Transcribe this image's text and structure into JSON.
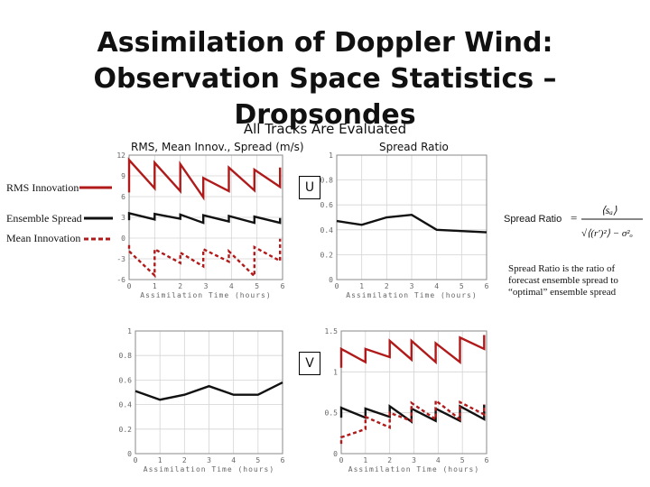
{
  "slide": {
    "title_line1": "Assimilation of Doppler Wind:",
    "title_line2": "Observation Space Statistics – Dropsondes",
    "subtitle": "All Tracks Are Evaluated",
    "left_heading": "RMS, Mean Innov., Spread (m/s)",
    "right_heading": "Spread Ratio",
    "u_label": "U",
    "v_label": "V",
    "formula_label": "Spread Ratio",
    "note": "Spread Ratio is the ratio of forecast ensemble spread to “optimal” ensemble spread"
  },
  "legend": [
    {
      "label": "RMS Innovation",
      "color": "#b01a1a",
      "style": "solid"
    },
    {
      "label": "Ensemble Spread",
      "color": "#111111",
      "style": "solid"
    },
    {
      "label": "Mean Innovation",
      "color": "#b01a1a",
      "style": "dashed"
    }
  ],
  "colors": {
    "rms": "#b01a1a",
    "spread": "#111111",
    "mean": "#b01a1a",
    "grid": "#d4d4d4",
    "frame": "#888888"
  },
  "chart_data": [
    {
      "id": "u-innovation",
      "type": "line",
      "title": "RMS, Mean Innov., Spread (m/s)",
      "xlabel": "Assimilation Time (hours)",
      "xlim": [
        0,
        6
      ],
      "ylim": [
        -6,
        12
      ],
      "xticks": [
        "0",
        "1",
        "2",
        "3",
        "4",
        "5",
        "6"
      ],
      "yticks": [
        "12",
        "9",
        "6",
        "3",
        "0",
        "-3",
        "-6"
      ],
      "grid": true,
      "series": [
        {
          "name": "RMS Innovation",
          "style": "solid",
          "color": "#b01a1a",
          "x": [
            0,
            0,
            1,
            1,
            2,
            2,
            2.9,
            2.9,
            3.9,
            3.9,
            4.9,
            4.9,
            5.9,
            5.9
          ],
          "y": [
            6.6,
            11.3,
            7.2,
            10.9,
            6.8,
            10.7,
            5.9,
            8.7,
            6.8,
            10.2,
            6.9,
            9.9,
            7.4,
            10.2
          ]
        },
        {
          "name": "Ensemble Spread",
          "style": "solid",
          "color": "#111111",
          "x": [
            0,
            0,
            1,
            1,
            2,
            2,
            2.9,
            2.9,
            3.9,
            3.9,
            4.9,
            4.9,
            5.9,
            5.9
          ],
          "y": [
            2.6,
            3.6,
            2.7,
            3.5,
            2.8,
            3.4,
            2.2,
            3.3,
            2.4,
            3.2,
            2.2,
            3.1,
            2.2,
            2.9
          ]
        },
        {
          "name": "Mean Innovation",
          "style": "dashed",
          "color": "#b01a1a",
          "x": [
            0,
            0,
            1,
            1,
            2,
            2,
            2.9,
            2.9,
            3.9,
            3.9,
            4.9,
            4.9,
            5.9,
            5.9
          ],
          "y": [
            -1.0,
            -1.9,
            -5.4,
            -1.6,
            -3.6,
            -2.1,
            -4.1,
            -1.6,
            -3.4,
            -1.9,
            -5.5,
            -1.3,
            -3.3,
            -0.1
          ]
        }
      ]
    },
    {
      "id": "u-ratio",
      "type": "line",
      "title": "Spread Ratio",
      "xlabel": "Assimilation Time (hours)",
      "xlim": [
        0,
        6
      ],
      "ylim": [
        0,
        1
      ],
      "xticks": [
        "0",
        "1",
        "2",
        "3",
        "4",
        "5",
        "6"
      ],
      "yticks": [
        "1",
        "0.8",
        "0.6",
        "0.4",
        "0.2",
        "0"
      ],
      "grid": true,
      "series": [
        {
          "style": "solid",
          "color": "#111111",
          "x": [
            0,
            1,
            2,
            3,
            4,
            5,
            6
          ],
          "y": [
            0.47,
            0.44,
            0.5,
            0.52,
            0.4,
            0.39,
            0.38
          ]
        }
      ]
    },
    {
      "id": "v-ratio",
      "type": "line",
      "xlabel": "Assimilation Time (hours)",
      "xlim": [
        0,
        6
      ],
      "ylim": [
        0,
        1
      ],
      "xticks": [
        "0",
        "1",
        "2",
        "3",
        "4",
        "5",
        "6"
      ],
      "yticks": [
        "1",
        "0.8",
        "0.6",
        "0.4",
        "0.2",
        "0"
      ],
      "grid": true,
      "series": [
        {
          "style": "solid",
          "color": "#111111",
          "x": [
            0,
            1,
            2,
            3,
            4,
            5,
            6
          ],
          "y": [
            0.51,
            0.44,
            0.48,
            0.55,
            0.48,
            0.48,
            0.58
          ]
        }
      ]
    },
    {
      "id": "v-innovation",
      "type": "line",
      "xlabel": "Assimilation Time (hours)",
      "xlim": [
        0,
        6
      ],
      "ylim": [
        0,
        1.5
      ],
      "xticks": [
        "0",
        "1",
        "2",
        "3",
        "4",
        "5",
        "6"
      ],
      "yticks": [
        "1.5",
        "1",
        "0.5",
        "0"
      ],
      "grid": true,
      "series": [
        {
          "name": "RMS Innovation",
          "style": "solid",
          "color": "#b01a1a",
          "x": [
            0,
            0,
            1,
            1,
            2,
            2,
            2.9,
            2.9,
            3.9,
            3.9,
            4.9,
            4.9,
            5.9,
            5.9
          ],
          "y": [
            1.05,
            1.28,
            1.12,
            1.28,
            1.18,
            1.38,
            1.15,
            1.38,
            1.12,
            1.35,
            1.12,
            1.42,
            1.28,
            1.45
          ]
        },
        {
          "name": "Ensemble Spread",
          "style": "solid",
          "color": "#111111",
          "x": [
            0,
            0,
            1,
            1,
            2,
            2,
            2.9,
            2.9,
            3.9,
            3.9,
            4.9,
            4.9,
            5.9,
            5.9
          ],
          "y": [
            0.44,
            0.56,
            0.44,
            0.55,
            0.45,
            0.58,
            0.39,
            0.55,
            0.4,
            0.55,
            0.4,
            0.58,
            0.42,
            0.6
          ]
        },
        {
          "name": "Mean Innovation",
          "style": "dashed",
          "color": "#b01a1a",
          "x": [
            0,
            0,
            1,
            1,
            2,
            2,
            2.9,
            2.9,
            3.9,
            3.9,
            4.9,
            4.9,
            5.9,
            5.9
          ],
          "y": [
            0.12,
            0.2,
            0.3,
            0.45,
            0.32,
            0.5,
            0.4,
            0.62,
            0.42,
            0.65,
            0.42,
            0.63,
            0.48,
            0.6
          ]
        }
      ]
    }
  ]
}
